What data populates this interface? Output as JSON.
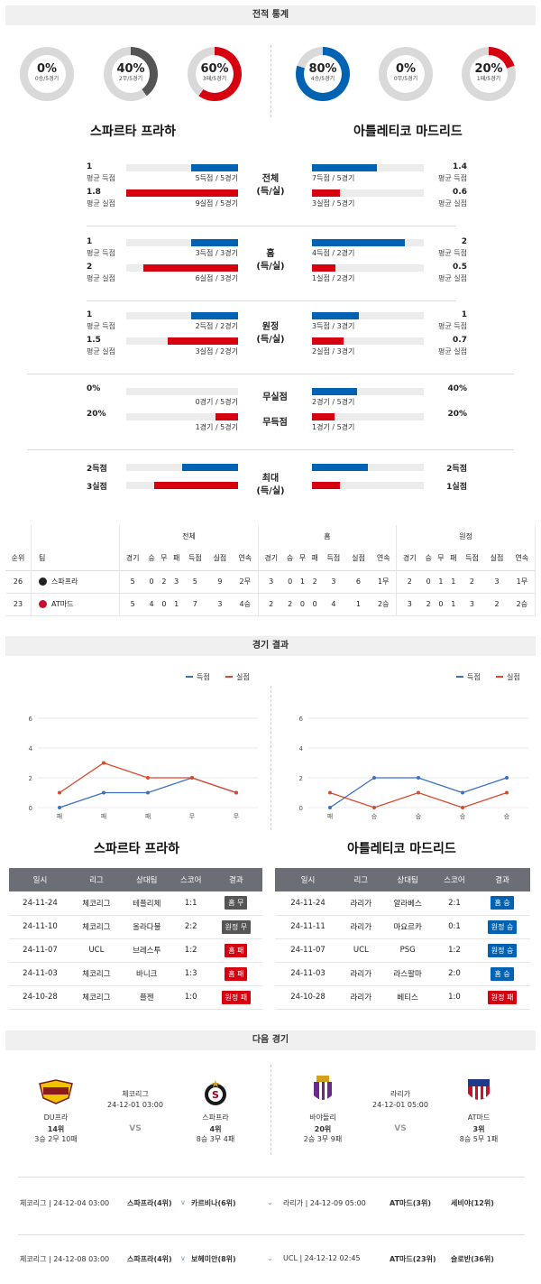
{
  "sections": {
    "stats": "전적 통계",
    "results": "경기 결과",
    "next": "다음 경기"
  },
  "donuts": [
    {
      "pct": "0%",
      "sub": "0승/5경기",
      "value": 0,
      "color": "#0062b2"
    },
    {
      "pct": "40%",
      "sub": "2무/5경기",
      "value": 0.4,
      "color": "#555555"
    },
    {
      "pct": "60%",
      "sub": "3패/5경기",
      "value": 0.6,
      "color": "#d6000f"
    },
    {
      "pct": "80%",
      "sub": "4승/5경기",
      "value": 0.8,
      "color": "#0062b2"
    },
    {
      "pct": "0%",
      "sub": "0무/5경기",
      "value": 0,
      "color": "#555555"
    },
    {
      "pct": "20%",
      "sub": "1패/5경기",
      "value": 0.2,
      "color": "#d6000f"
    }
  ],
  "teams": {
    "home": "스파르타 프라하",
    "away": "아틀레티코 마드리드"
  },
  "stat_blocks": [
    {
      "title": "전체\n(득/실)",
      "rows": [
        {
          "lv": "1",
          "ll": "평균 득점",
          "lfrac": 0.42,
          "lbar": "5득점 / 5경기",
          "rv": "1.4",
          "rl": "평균 득점",
          "rfrac": 0.58,
          "rbar": "7득점 / 5경기",
          "color": "#0062b2"
        },
        {
          "lv": "1.8",
          "ll": "평균 실점",
          "lfrac": 1.0,
          "lbar": "9실점 / 5경기",
          "rv": "0.6",
          "rl": "평균 실점",
          "rfrac": 0.25,
          "rbar": "3실점 / 5경기",
          "color": "#d6000f"
        }
      ]
    },
    {
      "title": "홈\n(득/실)",
      "rows": [
        {
          "lv": "1",
          "ll": "평균 득점",
          "lfrac": 0.42,
          "lbar": "3득점 / 3경기",
          "rv": "2",
          "rl": "평균 득점",
          "rfrac": 0.83,
          "rbar": "4득점 / 2경기",
          "color": "#0062b2"
        },
        {
          "lv": "2",
          "ll": "평균 실점",
          "lfrac": 0.85,
          "lbar": "6실점 / 3경기",
          "rv": "0.5",
          "rl": "평균 실점",
          "rfrac": 0.21,
          "rbar": "1실점 / 2경기",
          "color": "#d6000f"
        }
      ]
    },
    {
      "title": "원정\n(득/실)",
      "rows": [
        {
          "lv": "1",
          "ll": "평균 득점",
          "lfrac": 0.42,
          "lbar": "2득점 / 2경기",
          "rv": "1",
          "rl": "평균 득점",
          "rfrac": 0.42,
          "rbar": "3득점 / 3경기",
          "color": "#0062b2"
        },
        {
          "lv": "1.5",
          "ll": "평균 실점",
          "lfrac": 0.63,
          "lbar": "3실점 / 2경기",
          "rv": "0.7",
          "rl": "평균 실점",
          "rfrac": 0.28,
          "rbar": "2실점 / 3경기",
          "color": "#d6000f"
        }
      ]
    },
    {
      "title": "",
      "rows": [
        {
          "lv": "0%",
          "ll": "",
          "lfrac": 0,
          "lbar": "0경기 / 5경기",
          "rv": "40%",
          "rl": "",
          "rfrac": 0.4,
          "rbar": "2경기 / 5경기",
          "color": "#0062b2",
          "mid": "무실점"
        },
        {
          "lv": "20%",
          "ll": "",
          "lfrac": 0.2,
          "lbar": "1경기 / 5경기",
          "rv": "20%",
          "rl": "",
          "rfrac": 0.2,
          "rbar": "1경기 / 5경기",
          "color": "#d6000f",
          "mid": "무득점"
        }
      ]
    },
    {
      "title": "최대\n(득/실)",
      "rows": [
        {
          "lv": "2득점",
          "ll": "",
          "lfrac": 0.5,
          "lbar": "",
          "rv": "2득점",
          "rl": "",
          "rfrac": 0.5,
          "rbar": "",
          "color": "#0062b2"
        },
        {
          "lv": "3실점",
          "ll": "",
          "lfrac": 0.75,
          "lbar": "",
          "rv": "1실점",
          "rl": "",
          "rfrac": 0.25,
          "rbar": "",
          "color": "#d6000f"
        }
      ]
    }
  ],
  "standings": {
    "groups": [
      "전체",
      "홈",
      "원정"
    ],
    "rank_h": "순위",
    "team_h": "팀",
    "cols": [
      "경기",
      "승",
      "무",
      "패",
      "득점",
      "실점",
      "연속"
    ],
    "rows": [
      {
        "rank": "26",
        "team": "스파프라",
        "vals": [
          "5",
          "0",
          "2",
          "3",
          "5",
          "9",
          "2무",
          "3",
          "0",
          "1",
          "2",
          "3",
          "6",
          "1무",
          "2",
          "0",
          "1",
          "1",
          "2",
          "3",
          "1무"
        ]
      },
      {
        "rank": "23",
        "team": "AT마드",
        "vals": [
          "5",
          "4",
          "0",
          "1",
          "7",
          "3",
          "4승",
          "2",
          "2",
          "0",
          "0",
          "4",
          "1",
          "2승",
          "3",
          "2",
          "0",
          "1",
          "3",
          "2",
          "2승"
        ]
      }
    ]
  },
  "legend": {
    "scored": "득점",
    "conceded": "실점"
  },
  "chart_data": [
    {
      "type": "line",
      "team": "스파르타 프라하",
      "categories": [
        "패",
        "패",
        "패",
        "무",
        "무"
      ],
      "ylim": [
        0,
        6
      ],
      "yticks": [
        "0",
        "2",
        "4",
        "6"
      ],
      "series": [
        {
          "name": "득점",
          "values": [
            0,
            1,
            1,
            2,
            1
          ],
          "color": "#3a6fc4"
        },
        {
          "name": "실점",
          "values": [
            1,
            3,
            2,
            2,
            1
          ],
          "color": "#d9492c"
        }
      ]
    },
    {
      "type": "line",
      "team": "아틀레티코 마드리드",
      "categories": [
        "패",
        "승",
        "승",
        "승",
        "승"
      ],
      "ylim": [
        0,
        6
      ],
      "yticks": [
        "0",
        "2",
        "4",
        "6"
      ],
      "series": [
        {
          "name": "득점",
          "values": [
            0,
            2,
            2,
            1,
            2
          ],
          "color": "#3a6fc4"
        },
        {
          "name": "실점",
          "values": [
            1,
            0,
            1,
            0,
            1
          ],
          "color": "#d9492c"
        }
      ]
    }
  ],
  "result_headers": [
    "일시",
    "리그",
    "상대팀",
    "스코어",
    "결과"
  ],
  "results_home": [
    {
      "date": "24-11-24",
      "league": "체코리그",
      "opp": "테플리체",
      "score": "1:1",
      "res": "홈 무",
      "color": "#555555"
    },
    {
      "date": "24-11-10",
      "league": "체코리그",
      "opp": "올라다불",
      "score": "2:2",
      "res": "원정 무",
      "color": "#555555"
    },
    {
      "date": "24-11-07",
      "league": "UCL",
      "opp": "브레스투",
      "score": "1:2",
      "res": "홈 패",
      "color": "#d6000f"
    },
    {
      "date": "24-11-03",
      "league": "체코리그",
      "opp": "바니크",
      "score": "1:3",
      "res": "홈 패",
      "color": "#d6000f"
    },
    {
      "date": "24-10-28",
      "league": "체코리그",
      "opp": "플젠",
      "score": "1:0",
      "res": "원정 패",
      "color": "#d6000f"
    }
  ],
  "results_away": [
    {
      "date": "24-11-24",
      "league": "라리가",
      "opp": "알라베스",
      "score": "2:1",
      "res": "홈 승",
      "color": "#0062b2"
    },
    {
      "date": "24-11-11",
      "league": "라리가",
      "opp": "마요르카",
      "score": "0:1",
      "res": "원정 승",
      "color": "#0062b2"
    },
    {
      "date": "24-11-07",
      "league": "UCL",
      "opp": "PSG",
      "score": "1:2",
      "res": "원정 승",
      "color": "#0062b2"
    },
    {
      "date": "24-11-03",
      "league": "라리가",
      "opp": "라스팔마",
      "score": "2:0",
      "res": "홈 승",
      "color": "#0062b2"
    },
    {
      "date": "24-10-28",
      "league": "라리가",
      "opp": "베티스",
      "score": "1:0",
      "res": "원정 패",
      "color": "#d6000f"
    }
  ],
  "next_home": {
    "t1": "DU프라",
    "t1r": "14위",
    "t1rec": "3승 2무 10패",
    "league": "체코리그",
    "dt": "24-12-01 03:00",
    "vs": "VS",
    "t2": "스파프라",
    "t2r": "4위",
    "t2rec": "8승 3무 4패"
  },
  "next_away": {
    "t1": "바야돌리",
    "t1r": "20위",
    "t1rec": "2승 3무 9패",
    "league": "라리가",
    "dt": "24-12-01 05:00",
    "vs": "VS",
    "t2": "AT마드",
    "t2r": "3위",
    "t2rec": "8승 5무 1패"
  },
  "fixtures": [
    {
      "l": "체코리그 | 24-12-04 03:00",
      "m": "스파프라(4위)",
      "o": "카르비나(6위)",
      "r": "라리가 | 24-12-09 05:00",
      "rm": "AT마드(3위)",
      "ro": "세비야(12위)"
    },
    {
      "l": "체코리그 | 24-12-08 03:00",
      "m": "스파프라(4위)",
      "o": "보헤미안(8위)",
      "r": "UCL | 24-12-12 02:45",
      "rm": "AT마드(23위)",
      "ro": "슬로반(36위)"
    }
  ]
}
